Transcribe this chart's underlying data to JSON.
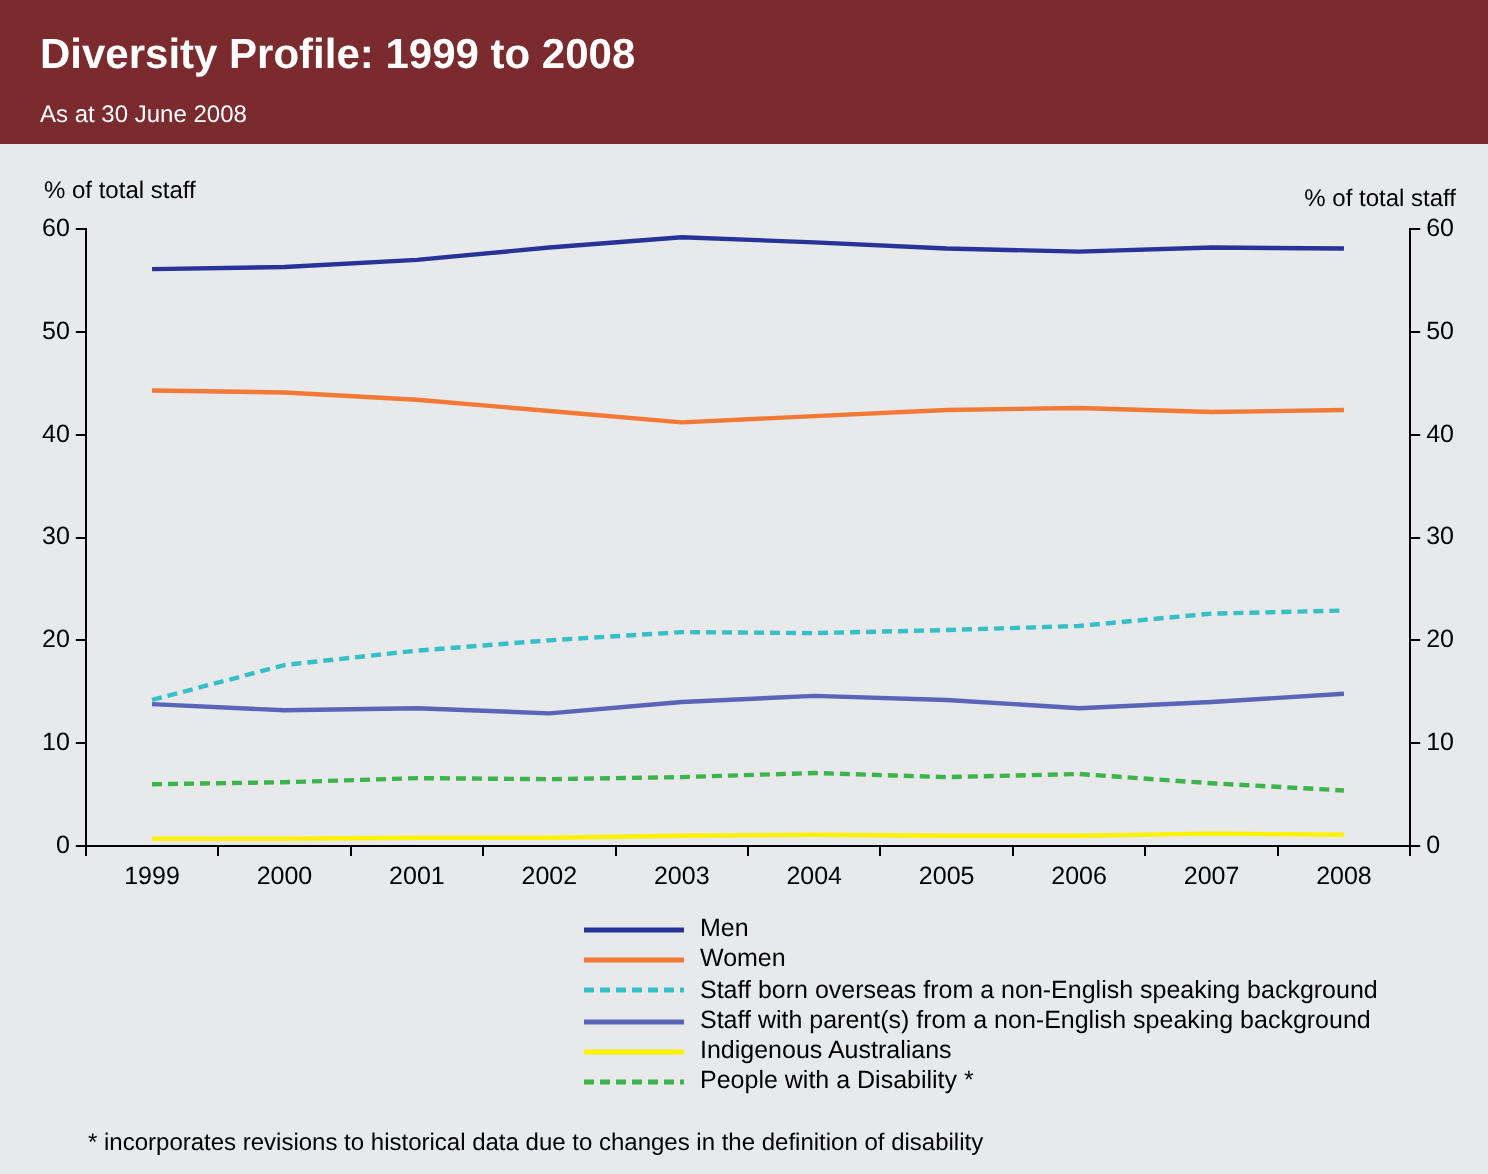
{
  "chart_data": {
    "type": "line",
    "title": "Diversity Profile: 1999 to 2008",
    "subtitle": "As at 30 June 2008",
    "ylabel": "% of total staff",
    "y2label": "% of total staff",
    "categories": [
      "1999",
      "2000",
      "2001",
      "2002",
      "2003",
      "2004",
      "2005",
      "2006",
      "2007",
      "2008"
    ],
    "ylim": [
      0,
      60
    ],
    "yticks": [
      0,
      10,
      20,
      30,
      40,
      50,
      60
    ],
    "y2lim": [
      0,
      60
    ],
    "y2ticks": [
      0,
      10,
      20,
      30,
      40,
      50,
      60
    ],
    "grid": false,
    "legend": "bottom",
    "marker": "none",
    "series": [
      {
        "name": "Men",
        "color": "#28339a",
        "line_style": "solid",
        "values": [
          56.1,
          56.3,
          57.0,
          58.2,
          59.2,
          58.7,
          58.1,
          57.8,
          58.2,
          58.1
        ]
      },
      {
        "name": "Women",
        "color": "#f47836",
        "line_style": "solid",
        "values": [
          44.3,
          44.1,
          43.4,
          42.3,
          41.2,
          41.8,
          42.4,
          42.6,
          42.2,
          42.4
        ]
      },
      {
        "name": "Staff born overseas from a non-English speaking background",
        "color": "#35c0c8",
        "line_style": "dashed",
        "values": [
          14.2,
          17.6,
          19.0,
          20.0,
          20.8,
          20.7,
          21.0,
          21.4,
          22.6,
          22.9
        ]
      },
      {
        "name": "Staff with parent(s) from a non-English speaking background",
        "color": "#5a64b8",
        "line_style": "solid",
        "values": [
          13.8,
          13.2,
          13.4,
          12.9,
          14.0,
          14.6,
          14.2,
          13.4,
          14.0,
          14.8
        ]
      },
      {
        "name": "Indigenous Australians",
        "color": "#fff200",
        "line_style": "solid",
        "values": [
          0.7,
          0.7,
          0.8,
          0.8,
          1.0,
          1.1,
          1.0,
          1.0,
          1.2,
          1.1
        ]
      },
      {
        "name": "People with a Disability *",
        "color": "#3bb44a",
        "line_style": "dashed",
        "values": [
          6.0,
          6.2,
          6.6,
          6.5,
          6.7,
          7.1,
          6.7,
          7.0,
          6.1,
          5.4
        ]
      }
    ],
    "annotations": [
      "* incorporates revisions to historical data due to changes in the definition of disability"
    ]
  }
}
